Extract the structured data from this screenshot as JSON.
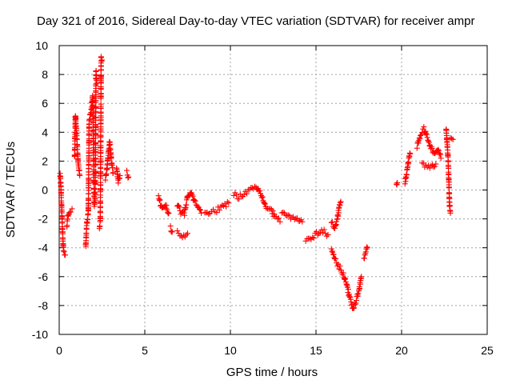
{
  "chart_data": {
    "type": "scatter",
    "title": "Day 321 of 2016, Sidereal Day-to-day VTEC variation (SDTVAR) for receiver ampr",
    "xlabel": "GPS time / hours",
    "ylabel": "SDTVAR / TECUs",
    "xlim": [
      0,
      25
    ],
    "ylim": [
      -10,
      10
    ],
    "xticks": [
      0,
      5,
      10,
      15,
      20,
      25
    ],
    "yticks": [
      -10,
      -8,
      -6,
      -4,
      -2,
      0,
      2,
      4,
      6,
      8,
      10
    ],
    "grid": true,
    "marker": "plus",
    "color": "#ff0000",
    "series_anchors": [
      {
        "name": "segment-1",
        "points": [
          [
            0.05,
            1.2
          ],
          [
            0.1,
            0.2
          ],
          [
            0.15,
            -1.5
          ],
          [
            0.2,
            -3.0
          ],
          [
            0.25,
            -4.2
          ],
          [
            0.35,
            -4.5
          ]
        ]
      },
      {
        "name": "segment-2",
        "points": [
          [
            0.45,
            -2.4
          ],
          [
            0.5,
            -1.8
          ],
          [
            0.6,
            -1.4
          ],
          [
            0.75,
            -1.3
          ]
        ]
      },
      {
        "name": "segment-3",
        "points": [
          [
            0.9,
            2.3
          ],
          [
            0.95,
            5.2
          ],
          [
            1.0,
            4.1
          ],
          [
            1.05,
            3.2
          ],
          [
            1.1,
            2.0
          ],
          [
            1.2,
            1.0
          ]
        ]
      },
      {
        "name": "segment-4",
        "points": [
          [
            1.55,
            -3.9
          ],
          [
            1.6,
            -2.5
          ],
          [
            1.7,
            -1.6
          ],
          [
            1.75,
            4.8
          ],
          [
            1.85,
            5.4
          ],
          [
            1.95,
            6.5
          ],
          [
            2.05,
            -1.0
          ],
          [
            2.1,
            -0.6
          ],
          [
            2.15,
            8.2
          ],
          [
            2.2,
            7.4
          ]
        ]
      },
      {
        "name": "segment-5",
        "points": [
          [
            2.35,
            -2.6
          ],
          [
            2.4,
            -2.2
          ],
          [
            2.45,
            9.2
          ],
          [
            2.5,
            9.0
          ]
        ]
      },
      {
        "name": "segment-6",
        "points": [
          [
            2.7,
            0.8
          ],
          [
            2.8,
            1.6
          ],
          [
            2.85,
            2.3
          ],
          [
            2.95,
            3.4
          ],
          [
            3.05,
            2.0
          ],
          [
            3.15,
            1.2
          ]
        ]
      },
      {
        "name": "segment-7",
        "points": [
          [
            3.35,
            1.6
          ],
          [
            3.45,
            0.6
          ],
          [
            3.55,
            1.0
          ]
        ]
      },
      {
        "name": "segment-8",
        "points": [
          [
            3.95,
            1.2
          ],
          [
            4.05,
            0.9
          ]
        ]
      },
      {
        "name": "segment-9",
        "points": [
          [
            5.8,
            -0.5
          ],
          [
            6.0,
            -1.3
          ],
          [
            6.2,
            -1.0
          ],
          [
            6.4,
            -1.6
          ]
        ]
      },
      {
        "name": "segment-10",
        "points": [
          [
            6.5,
            -2.6
          ],
          [
            6.6,
            -2.9
          ]
        ]
      },
      {
        "name": "segment-11",
        "points": [
          [
            6.9,
            -3.0
          ],
          [
            7.2,
            -3.2
          ],
          [
            7.5,
            -3.0
          ]
        ]
      },
      {
        "name": "segment-12",
        "points": [
          [
            6.9,
            -1.0
          ],
          [
            7.1,
            -1.5
          ],
          [
            7.3,
            -1.7
          ],
          [
            7.5,
            -0.5
          ],
          [
            7.7,
            -0.2
          ],
          [
            7.9,
            -0.8
          ],
          [
            8.1,
            -1.2
          ],
          [
            8.3,
            -1.6
          ]
        ]
      },
      {
        "name": "segment-13",
        "points": [
          [
            8.5,
            -1.6
          ],
          [
            8.8,
            -1.5
          ],
          [
            9.2,
            -1.4
          ],
          [
            9.6,
            -1.1
          ],
          [
            9.9,
            -0.9
          ]
        ]
      },
      {
        "name": "segment-14",
        "points": [
          [
            10.2,
            -0.3
          ],
          [
            10.5,
            -0.5
          ],
          [
            10.8,
            -0.2
          ],
          [
            11.2,
            0.1
          ],
          [
            11.5,
            0.3
          ],
          [
            11.8,
            -0.4
          ],
          [
            12.1,
            -1.2
          ],
          [
            12.4,
            -1.4
          ],
          [
            12.6,
            -1.9
          ],
          [
            12.9,
            -2.2
          ]
        ]
      },
      {
        "name": "segment-15",
        "points": [
          [
            13.0,
            -1.6
          ],
          [
            13.3,
            -1.8
          ],
          [
            13.6,
            -1.9
          ],
          [
            13.9,
            -2.0
          ],
          [
            14.2,
            -2.2
          ]
        ]
      },
      {
        "name": "segment-16",
        "points": [
          [
            14.4,
            -3.5
          ],
          [
            14.8,
            -3.2
          ],
          [
            15.1,
            -3.0
          ],
          [
            15.4,
            -2.8
          ],
          [
            15.7,
            -3.1
          ]
        ]
      },
      {
        "name": "segment-17",
        "points": [
          [
            15.9,
            -2.3
          ],
          [
            16.1,
            -2.6
          ],
          [
            16.25,
            -2.0
          ],
          [
            16.35,
            -1.2
          ],
          [
            16.45,
            -0.8
          ]
        ]
      },
      {
        "name": "segment-18",
        "points": [
          [
            15.9,
            -4.2
          ],
          [
            16.1,
            -4.8
          ],
          [
            16.3,
            -5.2
          ],
          [
            16.6,
            -5.8
          ],
          [
            16.8,
            -6.6
          ],
          [
            17.0,
            -7.6
          ],
          [
            17.15,
            -8.2
          ],
          [
            17.3,
            -7.8
          ],
          [
            17.5,
            -7.0
          ],
          [
            17.65,
            -6.0
          ]
        ]
      },
      {
        "name": "segment-19",
        "points": [
          [
            17.8,
            -4.7
          ],
          [
            18.0,
            -4.0
          ]
        ]
      },
      {
        "name": "segment-20",
        "points": [
          [
            19.7,
            0.3
          ],
          [
            19.75,
            0.5
          ]
        ]
      },
      {
        "name": "segment-21",
        "points": [
          [
            20.2,
            0.5
          ],
          [
            20.3,
            1.2
          ],
          [
            20.4,
            2.0
          ],
          [
            20.5,
            2.5
          ]
        ]
      },
      {
        "name": "segment-22",
        "points": [
          [
            20.9,
            3.0
          ],
          [
            21.1,
            3.8
          ],
          [
            21.3,
            4.2
          ],
          [
            21.5,
            3.6
          ],
          [
            21.7,
            3.0
          ],
          [
            21.9,
            2.5
          ],
          [
            22.1,
            2.8
          ],
          [
            22.3,
            2.2
          ]
        ]
      },
      {
        "name": "segment-23",
        "points": [
          [
            21.2,
            1.8
          ],
          [
            21.5,
            1.6
          ],
          [
            21.8,
            1.7
          ],
          [
            22.0,
            1.8
          ]
        ]
      },
      {
        "name": "segment-24",
        "points": [
          [
            22.6,
            4.3
          ],
          [
            22.7,
            2.5
          ],
          [
            22.75,
            1.0
          ],
          [
            22.8,
            -1.0
          ],
          [
            22.85,
            -1.6
          ]
        ]
      },
      {
        "name": "segment-25",
        "points": [
          [
            22.85,
            3.6
          ],
          [
            23.0,
            3.5
          ]
        ]
      }
    ]
  }
}
